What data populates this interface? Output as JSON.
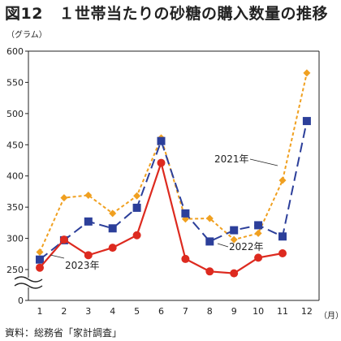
{
  "title": "図12　１世帯当たりの砂糖の購入数量の推移",
  "y_unit": "（グラム）",
  "x_unit": "（月）",
  "source": "資料：総務省「家計調査」",
  "colors": {
    "2021": "#f0a020",
    "2022": "#2c3f9a",
    "2023": "#dd2a1f",
    "grid": "#9a9a9a",
    "axis": "#222222"
  },
  "chart_data": {
    "type": "line",
    "categories": [
      "1",
      "2",
      "3",
      "4",
      "5",
      "6",
      "7",
      "8",
      "9",
      "10",
      "11",
      "12"
    ],
    "ylim": [
      200,
      600
    ],
    "y_ticks": [
      0,
      250,
      300,
      350,
      400,
      450,
      500,
      550,
      600
    ],
    "y_break": "between 0 and 250",
    "grid": false,
    "series": [
      {
        "name": "2021年",
        "marker": "diamond",
        "linestyle": "dotted",
        "values": [
          278,
          365,
          369,
          340,
          368,
          461,
          331,
          332,
          298,
          308,
          393,
          565
        ]
      },
      {
        "name": "2022年",
        "marker": "square",
        "linestyle": "dashed",
        "values": [
          266,
          297,
          327,
          316,
          349,
          456,
          340,
          295,
          313,
          321,
          303,
          488
        ]
      },
      {
        "name": "2023年",
        "marker": "circle",
        "linestyle": "solid",
        "values": [
          253,
          298,
          273,
          285,
          305,
          421,
          267,
          247,
          244,
          269,
          276,
          null
        ]
      }
    ],
    "annotations": [
      {
        "text": "2021年",
        "series": "2021年"
      },
      {
        "text": "2022年",
        "series": "2022年"
      },
      {
        "text": "2023年",
        "series": "2023年"
      }
    ]
  }
}
